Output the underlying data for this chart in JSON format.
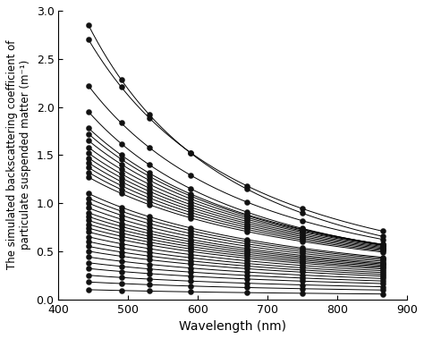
{
  "wavelengths": [
    443,
    490,
    530,
    590,
    670,
    750,
    865
  ],
  "ylabel": "The simulated backscattering coefficient of\nparticulate suspended matter (m⁻¹)",
  "xlabel": "Wavelength (nm)",
  "xlim": [
    400,
    900
  ],
  "ylim": [
    0.0,
    3.0
  ],
  "yticks": [
    0.0,
    0.5,
    1.0,
    1.5,
    2.0,
    2.5,
    3.0
  ],
  "xticks": [
    400,
    500,
    600,
    700,
    800,
    900
  ],
  "background_color": "#ffffff",
  "line_color": "#000000",
  "marker_color": "#111111",
  "marker_size": 4.5,
  "figsize": [
    4.74,
    3.79
  ],
  "dpi": 100,
  "bbp_443_values": [
    2.85,
    2.7,
    2.22,
    1.95,
    1.78,
    1.72,
    1.65,
    1.58,
    1.52,
    1.47,
    1.42,
    1.37,
    1.32,
    1.27,
    1.1,
    1.05,
    1.0,
    0.95,
    0.9,
    0.86,
    0.82,
    0.78,
    0.74,
    0.7,
    0.65,
    0.6,
    0.55,
    0.5,
    0.44,
    0.38,
    0.32,
    0.25,
    0.18,
    0.1
  ],
  "exponents": [
    2.2,
    2.0,
    1.9,
    1.85,
    1.7,
    1.65,
    1.6,
    1.55,
    1.52,
    1.5,
    1.48,
    1.46,
    1.44,
    1.42,
    1.38,
    1.35,
    1.33,
    1.31,
    1.29,
    1.27,
    1.25,
    1.23,
    1.21,
    1.19,
    1.17,
    1.15,
    1.12,
    1.09,
    1.06,
    1.03,
    1.0,
    0.97,
    0.93,
    0.88
  ]
}
